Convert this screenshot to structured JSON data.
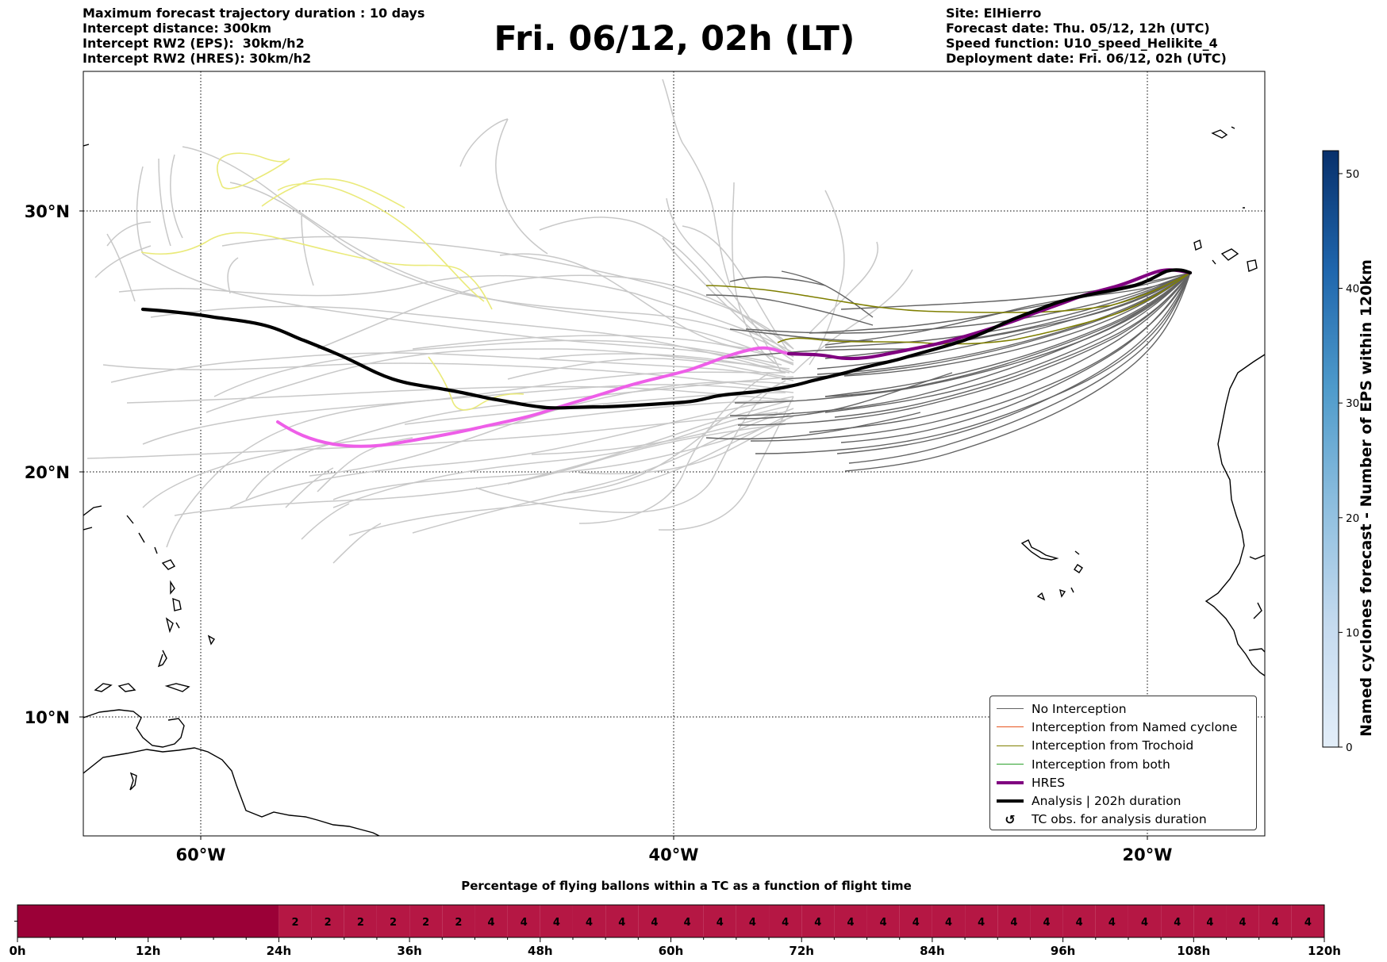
{
  "header": {
    "left_lines": [
      "Maximum forecast trajectory duration : 10 days",
      "Intercept distance: 300km",
      "Intercept RW2 (EPS):  30km/h2",
      "Intercept RW2 (HRES): 30km/h2"
    ],
    "title": "Fri. 06/12, 02h (LT)",
    "right_lines": [
      "Site: ElHierro",
      "Forecast date: Thu. 05/12, 12h (UTC)",
      "Speed function: U10_speed_Helikite_4",
      "Deployment date: Fri. 06/12, 02h (UTC)"
    ]
  },
  "map": {
    "lat_labels": [
      "30°N",
      "20°N",
      "10°N"
    ],
    "lon_labels": [
      "60°W",
      "40°W",
      "20°W"
    ],
    "extent": {
      "lon_min": -65,
      "lon_max": -15,
      "lat_min": 5,
      "lat_max": 34.3
    },
    "colors": {
      "no_interception": "#636363",
      "eps_other": "#c8c8c8",
      "named_cyclone": "#e8541e",
      "trochoid": "#7f7f00",
      "both": "#2ca02c",
      "hres": "#800080",
      "hres_extension": "#ee5ee8",
      "analysis": "#000000",
      "yellow_tracks": "#eaea7a"
    }
  },
  "legend": {
    "items": [
      {
        "label": "No Interception",
        "icon": "line-thin"
      },
      {
        "label": "Interception from Named cyclone",
        "icon": "line-thin"
      },
      {
        "label": "Interception from Trochoid",
        "icon": "line-thin"
      },
      {
        "label": "Interception from both",
        "icon": "line-thin"
      },
      {
        "label": "HRES",
        "icon": "line-thick"
      },
      {
        "label": "Analysis | 202h duration",
        "icon": "line-thick"
      },
      {
        "label": "TC obs. for analysis duration",
        "icon": "tc-symbol-icon"
      }
    ],
    "tc_symbol": "↺"
  },
  "colorbar": {
    "label": "Named cyclones forecast - Number of EPS within 120km",
    "min": 0,
    "max": 52,
    "ticks": [
      "0",
      "10",
      "20",
      "30",
      "40",
      "50"
    ],
    "color_low": "#e3eef9",
    "color_high": "#08306b"
  },
  "timeline": {
    "title": "Percentage of flying ballons within a TC as a function of flight time",
    "tick_labels": [
      "0h",
      "12h",
      "24h",
      "36h",
      "48h",
      "60h",
      "72h",
      "84h",
      "96h",
      "108h",
      "120h"
    ],
    "color_zero": "#9b0037",
    "color_nonzero": "#b51744",
    "cells": [
      {
        "start_h": 0,
        "end_h": 24,
        "value": ""
      },
      {
        "start_h": 24,
        "end_h": 27,
        "value": "2"
      },
      {
        "start_h": 27,
        "end_h": 30,
        "value": "2"
      },
      {
        "start_h": 30,
        "end_h": 33,
        "value": "2"
      },
      {
        "start_h": 33,
        "end_h": 36,
        "value": "2"
      },
      {
        "start_h": 36,
        "end_h": 39,
        "value": "2"
      },
      {
        "start_h": 39,
        "end_h": 42,
        "value": "2"
      },
      {
        "start_h": 42,
        "end_h": 45,
        "value": "4"
      },
      {
        "start_h": 45,
        "end_h": 48,
        "value": "4"
      },
      {
        "start_h": 48,
        "end_h": 51,
        "value": "4"
      },
      {
        "start_h": 51,
        "end_h": 54,
        "value": "4"
      },
      {
        "start_h": 54,
        "end_h": 57,
        "value": "4"
      },
      {
        "start_h": 57,
        "end_h": 60,
        "value": "4"
      },
      {
        "start_h": 60,
        "end_h": 63,
        "value": "4"
      },
      {
        "start_h": 63,
        "end_h": 66,
        "value": "4"
      },
      {
        "start_h": 66,
        "end_h": 69,
        "value": "4"
      },
      {
        "start_h": 69,
        "end_h": 72,
        "value": "4"
      },
      {
        "start_h": 72,
        "end_h": 75,
        "value": "4"
      },
      {
        "start_h": 75,
        "end_h": 78,
        "value": "4"
      },
      {
        "start_h": 78,
        "end_h": 81,
        "value": "4"
      },
      {
        "start_h": 81,
        "end_h": 84,
        "value": "4"
      },
      {
        "start_h": 84,
        "end_h": 87,
        "value": "4"
      },
      {
        "start_h": 87,
        "end_h": 90,
        "value": "4"
      },
      {
        "start_h": 90,
        "end_h": 93,
        "value": "4"
      },
      {
        "start_h": 93,
        "end_h": 96,
        "value": "4"
      },
      {
        "start_h": 96,
        "end_h": 99,
        "value": "4"
      },
      {
        "start_h": 99,
        "end_h": 102,
        "value": "4"
      },
      {
        "start_h": 102,
        "end_h": 105,
        "value": "4"
      },
      {
        "start_h": 105,
        "end_h": 108,
        "value": "4"
      },
      {
        "start_h": 108,
        "end_h": 111,
        "value": "4"
      },
      {
        "start_h": 111,
        "end_h": 114,
        "value": "4"
      },
      {
        "start_h": 114,
        "end_h": 117,
        "value": "4"
      },
      {
        "start_h": 117,
        "end_h": 120,
        "value": "4"
      }
    ]
  }
}
